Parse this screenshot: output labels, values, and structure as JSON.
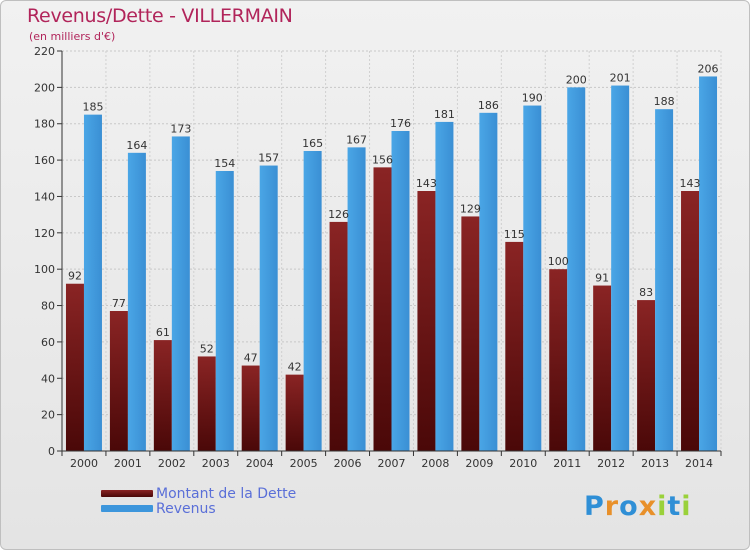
{
  "title": "Revenus/Dette - VILLERMAIN",
  "subtitle": "(en milliers d'€)",
  "logo": {
    "text": "Proxiti",
    "letters": [
      "P",
      "r",
      "o",
      "x",
      "i",
      "t",
      "i"
    ],
    "colors": [
      "#2f8fd6",
      "#e8902a",
      "#2f8fd6",
      "#e8902a",
      "#9ad13a",
      "#2f8fd6",
      "#9ad13a"
    ]
  },
  "legend": [
    {
      "label": "Montant de la Dette",
      "color": "#7a1818"
    },
    {
      "label": "Revenus",
      "color": "#3d96dc"
    }
  ],
  "chart_data": {
    "type": "bar",
    "categories": [
      "2000",
      "2001",
      "2002",
      "2003",
      "2004",
      "2005",
      "2006",
      "2007",
      "2008",
      "2009",
      "2010",
      "2011",
      "2012",
      "2013",
      "2014"
    ],
    "series": [
      {
        "name": "Montant de la Dette",
        "color": "#7a1818",
        "values": [
          92,
          77,
          61,
          52,
          47,
          42,
          126,
          156,
          143,
          129,
          115,
          100,
          91,
          83,
          143
        ]
      },
      {
        "name": "Revenus",
        "color": "#3d96dc",
        "values": [
          185,
          164,
          173,
          154,
          157,
          165,
          167,
          176,
          181,
          186,
          190,
          200,
          201,
          188,
          206
        ]
      }
    ],
    "yticks": [
      0,
      20,
      40,
      60,
      80,
      100,
      120,
      140,
      160,
      180,
      200,
      220
    ],
    "ylim": [
      0,
      220
    ],
    "grid": true
  }
}
